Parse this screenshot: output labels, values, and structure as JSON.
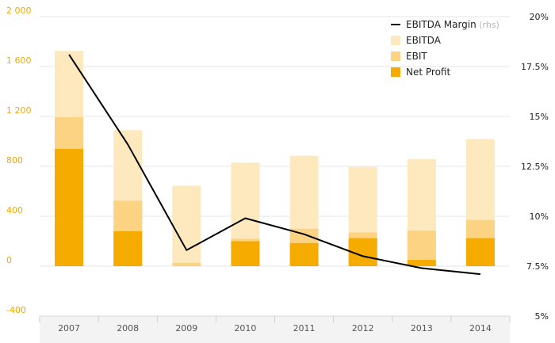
{
  "chart_data": {
    "type": "bar",
    "categories": [
      "2007",
      "2008",
      "2009",
      "2010",
      "2011",
      "2012",
      "2013",
      "2014"
    ],
    "series": [
      {
        "name": "Net Profit",
        "type": "bar",
        "axis": "left",
        "values": [
          940,
          280,
          0,
          200,
          185,
          225,
          50,
          225
        ],
        "color": "#f5ab00"
      },
      {
        "name": "EBIT",
        "type": "bar",
        "axis": "left",
        "values": [
          1195,
          525,
          25,
          220,
          300,
          270,
          285,
          370
        ],
        "color": "#fcd383"
      },
      {
        "name": "EBITDA",
        "type": "bar",
        "axis": "left",
        "values": [
          1725,
          1090,
          645,
          830,
          885,
          795,
          860,
          1020
        ],
        "color": "#fee9bf"
      },
      {
        "name": "EBITDA Margin",
        "type": "line",
        "axis": "right",
        "values": [
          18.1,
          13.6,
          8.3,
          9.9,
          9.1,
          8.0,
          7.4,
          7.1
        ],
        "color": "#000000"
      }
    ],
    "legend": {
      "position": "top-right",
      "items": [
        {
          "label": "EBITDA Margin",
          "note": "(rhs)",
          "kind": "line",
          "color": "#000000"
        },
        {
          "label": "EBITDA",
          "kind": "box",
          "color": "#fee9bf"
        },
        {
          "label": "EBIT",
          "kind": "box",
          "color": "#fcd383"
        },
        {
          "label": "Net Profit",
          "kind": "box",
          "color": "#f5ab00"
        }
      ]
    },
    "y_left": {
      "ylim": [
        -400,
        2000
      ],
      "ticks": [
        2000,
        1600,
        1200,
        800,
        400,
        0,
        -400
      ],
      "tick_labels": [
        "2 000",
        "1 600",
        "1 200",
        "800",
        "400",
        "0",
        "-400"
      ],
      "color": "#f5a800"
    },
    "y_right": {
      "ylim": [
        5,
        20
      ],
      "ticks": [
        20,
        17.5,
        15,
        12.5,
        10,
        7.5,
        5
      ],
      "tick_labels": [
        "20%",
        "17.5%",
        "15%",
        "12.5%",
        "10%",
        "7.5%",
        "5%"
      ]
    },
    "grid": true
  }
}
